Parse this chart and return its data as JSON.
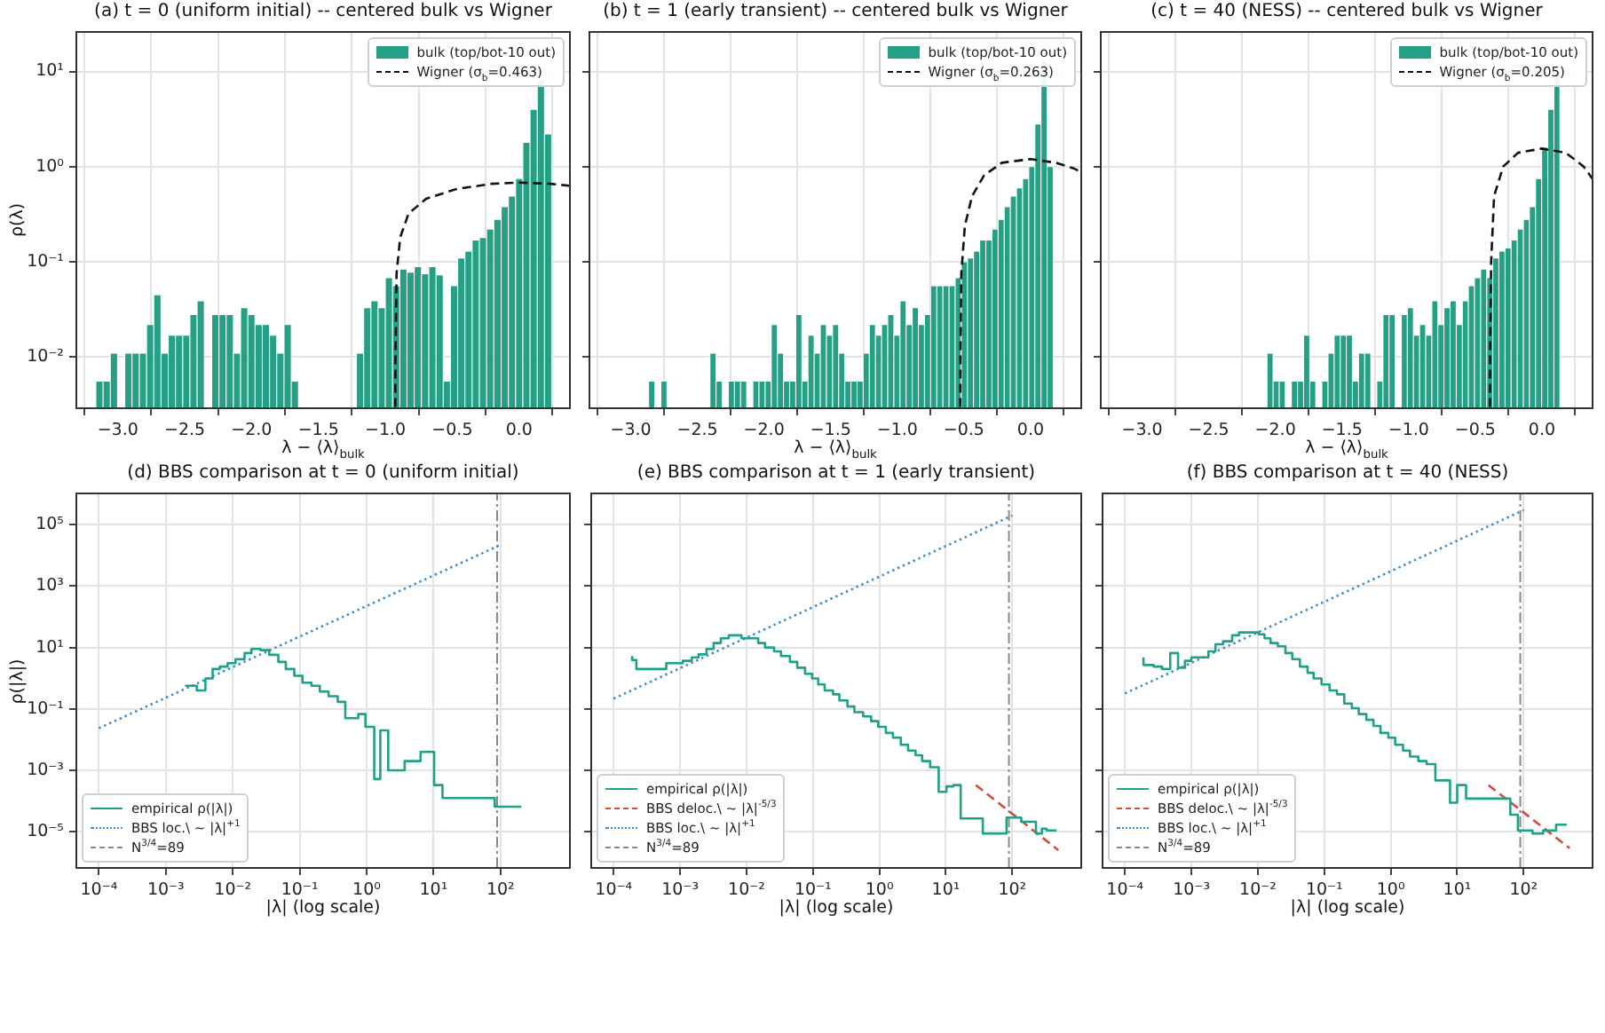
{
  "chart_data": [
    {
      "type": "histogram",
      "title": "(a) t = 0 (uniform initial)  -- centered bulk vs Wigner",
      "xlabel": "λ − ⟨λ⟩$_{bulk}$",
      "ylabel": "ρ(λ)",
      "log": "y",
      "grid": true,
      "legend": "top right",
      "xlim": [
        -3.31,
        0.38
      ],
      "ylim": [
        0.0029,
        26
      ],
      "xticks": [
        {
          "value": -3,
          "label": "−3.0"
        },
        {
          "value": -2.5,
          "label": "−2.5"
        },
        {
          "value": -2,
          "label": "−2.0"
        },
        {
          "value": -1.5,
          "label": "−1.5"
        },
        {
          "value": -1,
          "label": "−1.0"
        },
        {
          "value": -0.5,
          "label": "−0.5"
        },
        {
          "value": 0,
          "label": "0.0"
        }
      ],
      "yticks": [
        {
          "value": 0.01,
          "label": "10⁻²"
        },
        {
          "value": 0.1,
          "label": "10⁻¹"
        },
        {
          "value": 1,
          "label": "10⁰"
        },
        {
          "value": 10,
          "label": "10¹"
        }
      ],
      "series": [
        {
          "name": "bulk (top/bot-10 out)",
          "type": "histogram",
          "color": "#26a085",
          "bins": [
            -3.164,
            -3.11,
            -3.056,
            -3.002,
            -2.948,
            -2.894,
            -2.839,
            -2.785,
            -2.731,
            -2.677,
            -2.623,
            -2.569,
            -2.515,
            -2.461,
            -2.407,
            -2.353,
            -2.298,
            -2.244,
            -2.19,
            -2.136,
            -2.082,
            -2.028,
            -1.974,
            -1.92,
            -1.866,
            -1.812,
            -1.757,
            -1.703,
            -1.649,
            -1.595,
            -1.541,
            -1.487,
            -1.433,
            -1.379,
            -1.325,
            -1.271,
            -1.216,
            -1.162,
            -1.108,
            -1.054,
            -1.0,
            -0.946,
            -0.892,
            -0.838,
            -0.784,
            -0.73,
            -0.675,
            -0.621,
            -0.567,
            -0.513,
            -0.459,
            -0.405,
            -0.351,
            -0.297,
            -0.243,
            -0.189,
            -0.134,
            -0.08,
            -0.026,
            0.028,
            0.082,
            0.136,
            0.19,
            0.244
          ],
          "values": [
            0.0056,
            0.0056,
            0.011,
            null,
            0.011,
            0.011,
            0.011,
            0.022,
            0.045,
            0.011,
            0.017,
            0.017,
            0.017,
            0.028,
            0.039,
            null,
            0.028,
            0.028,
            0.028,
            0.011,
            0.033,
            0.028,
            0.022,
            0.022,
            0.017,
            0.011,
            0.022,
            0.0056,
            null,
            null,
            null,
            null,
            null,
            null,
            null,
            null,
            0.011,
            0.033,
            0.039,
            0.033,
            0.068,
            0.056,
            0.084,
            0.078,
            0.089,
            0.075,
            0.089,
            0.073,
            0.0056,
            0.056,
            0.11,
            0.13,
            0.17,
            0.18,
            0.22,
            0.28,
            0.38,
            0.49,
            0.75,
            1.8,
            4.0,
            8.1,
            2.2
          ]
        },
        {
          "name": "Wigner (σ$_{b}$=0.463)",
          "type": "line",
          "color": "#111111",
          "line_style": "dashed",
          "x": [
            -0.925,
            -0.924,
            -0.916,
            -0.889,
            -0.827,
            -0.695,
            -0.473,
            -0.208,
            0,
            0.235,
            0.376
          ],
          "values": [
            0.003,
            0.01,
            0.075,
            0.18,
            0.32,
            0.46,
            0.58,
            0.66,
            0.68,
            0.66,
            0.63
          ]
        }
      ]
    },
    {
      "type": "histogram",
      "title": "(b) t = 1 (early transient)  -- centered bulk vs Wigner",
      "xlabel": "λ − ⟨λ⟩$_{bulk}$",
      "log": "y",
      "grid": true,
      "legend": "top right",
      "tick_labels": "x",
      "xlim": [
        -3.31,
        0.38
      ],
      "ylim": [
        0.0029,
        26
      ],
      "xticks": [
        {
          "value": -3,
          "label": "−3.0"
        },
        {
          "value": -2.5,
          "label": "−2.5"
        },
        {
          "value": -2,
          "label": "−2.0"
        },
        {
          "value": -1.5,
          "label": "−1.5"
        },
        {
          "value": -1,
          "label": "−1.0"
        },
        {
          "value": -0.5,
          "label": "−0.5"
        },
        {
          "value": 0,
          "label": "0.0"
        }
      ],
      "yticks": [
        {
          "value": 0.01,
          "label": null
        },
        {
          "value": 0.1,
          "label": null
        },
        {
          "value": 1,
          "label": null
        },
        {
          "value": 10,
          "label": null
        }
      ],
      "series": [
        {
          "name": "bulk (top/bot-10 out)",
          "type": "histogram",
          "color": "#26a085",
          "bins": [
            -2.866,
            -2.82,
            -2.774,
            -2.728,
            -2.682,
            -2.636,
            -2.59,
            -2.544,
            -2.498,
            -2.452,
            -2.406,
            -2.36,
            -2.314,
            -2.268,
            -2.222,
            -2.176,
            -2.13,
            -2.084,
            -2.038,
            -1.992,
            -1.946,
            -1.9,
            -1.854,
            -1.808,
            -1.762,
            -1.716,
            -1.67,
            -1.624,
            -1.578,
            -1.532,
            -1.486,
            -1.44,
            -1.394,
            -1.348,
            -1.302,
            -1.256,
            -1.21,
            -1.164,
            -1.118,
            -1.072,
            -1.026,
            -0.98,
            -0.934,
            -0.888,
            -0.842,
            -0.796,
            -0.75,
            -0.704,
            -0.658,
            -0.612,
            -0.566,
            -0.52,
            -0.474,
            -0.428,
            -0.382,
            -0.336,
            -0.29,
            -0.244,
            -0.198,
            -0.152,
            -0.106,
            -0.06,
            -0.014,
            0.032,
            0.078,
            0.124,
            0.17
          ],
          "values": [
            0.0056,
            null,
            0.0056,
            null,
            null,
            null,
            null,
            null,
            null,
            null,
            0.011,
            0.0056,
            null,
            0.0056,
            0.0056,
            0.0056,
            null,
            0.0056,
            0.0056,
            0.0056,
            0.022,
            0.011,
            0.0056,
            0.0056,
            0.028,
            0.0056,
            0.017,
            0.011,
            0.022,
            0.017,
            0.022,
            0.011,
            0.0056,
            0.0056,
            0.0056,
            0.011,
            0.022,
            0.017,
            0.022,
            0.028,
            0.017,
            0.039,
            0.022,
            0.033,
            0.022,
            0.028,
            0.056,
            0.056,
            0.056,
            0.056,
            0.068,
            0.1,
            0.11,
            0.13,
            0.17,
            0.17,
            0.22,
            0.28,
            0.38,
            0.49,
            0.6,
            0.75,
            1.0,
            2.8,
            13,
            1.0
          ]
        },
        {
          "name": "Wigner (σ$_{b}$=0.263)",
          "type": "line",
          "color": "#111111",
          "line_style": "dashed",
          "x": [
            -0.528,
            -0.527,
            -0.52,
            -0.493,
            -0.439,
            -0.349,
            -0.215,
            0,
            0.188,
            0.322,
            0.376
          ],
          "values": [
            0.003,
            0.01,
            0.075,
            0.24,
            0.49,
            0.81,
            1.1,
            1.2,
            1.1,
            0.96,
            0.88
          ]
        }
      ]
    },
    {
      "type": "histogram",
      "title": "(c) t = 40 (NESS)  -- centered bulk vs Wigner",
      "xlabel": "λ − ⟨λ⟩$_{bulk}$",
      "log": "y",
      "grid": true,
      "legend": "top right",
      "tick_labels": "x",
      "xlim": [
        -3.31,
        0.38
      ],
      "ylim": [
        0.0029,
        26
      ],
      "xticks": [
        {
          "value": -3,
          "label": "−3.0"
        },
        {
          "value": -2.5,
          "label": "−2.5"
        },
        {
          "value": -2,
          "label": "−2.0"
        },
        {
          "value": -1.5,
          "label": "−1.5"
        },
        {
          "value": -1,
          "label": "−1.0"
        },
        {
          "value": -0.5,
          "label": "−0.5"
        },
        {
          "value": 0,
          "label": "0.0"
        }
      ],
      "yticks": [
        {
          "value": 0.01,
          "label": null
        },
        {
          "value": 0.1,
          "label": null
        },
        {
          "value": 1,
          "label": null
        },
        {
          "value": 10,
          "label": null
        }
      ],
      "series": [
        {
          "name": "bulk (top/bot-10 out)",
          "type": "histogram",
          "color": "#26a085",
          "bins": [
            -2.063,
            -2.017,
            -1.971,
            -1.926,
            -1.88,
            -1.834,
            -1.788,
            -1.742,
            -1.697,
            -1.651,
            -1.605,
            -1.559,
            -1.513,
            -1.468,
            -1.422,
            -1.376,
            -1.33,
            -1.284,
            -1.239,
            -1.193,
            -1.147,
            -1.101,
            -1.055,
            -1.01,
            -0.964,
            -0.918,
            -0.872,
            -0.826,
            -0.781,
            -0.735,
            -0.689,
            -0.643,
            -0.597,
            -0.552,
            -0.506,
            -0.46,
            -0.414,
            -0.369,
            -0.323,
            -0.277,
            -0.231,
            -0.185,
            -0.139,
            -0.094,
            -0.048,
            -0.002,
            0.044,
            0.09,
            0.135
          ],
          "values": [
            0.011,
            0.0056,
            0.0056,
            null,
            0.0056,
            0.0056,
            0.017,
            0.0056,
            null,
            0.0056,
            0.011,
            0.017,
            0.017,
            0.017,
            0.0056,
            0.011,
            0.011,
            null,
            0.0056,
            0.028,
            0.028,
            null,
            0.028,
            0.033,
            0.017,
            0.022,
            0.017,
            0.039,
            0.022,
            0.033,
            0.039,
            0.022,
            0.039,
            0.056,
            0.068,
            0.084,
            0.068,
            0.11,
            0.13,
            0.14,
            0.17,
            0.22,
            0.28,
            0.38,
            0.75,
            1.6,
            4.0,
            10
          ]
        },
        {
          "name": "Wigner (σ$_{b}$=0.205)",
          "type": "line",
          "color": "#111111",
          "line_style": "dashed",
          "x": [
            -0.39,
            -0.389,
            -0.381,
            -0.359,
            -0.291,
            -0.179,
            0,
            0.179,
            0.314,
            0.378
          ],
          "values": [
            0.003,
            0.01,
            0.1,
            0.49,
            1.0,
            1.4,
            1.55,
            1.4,
            1.0,
            0.75
          ]
        }
      ]
    },
    {
      "type": "step",
      "title": "(d) BBS comparison at t = 0 (uniform initial)",
      "xlabel": "|λ| (log scale)",
      "ylabel": "ρ(|λ|)",
      "log": "xy",
      "grid": true,
      "legend": "bottom left",
      "xlim": [
        4.6e-05,
        1090
      ],
      "ylim": [
        6.6e-07,
        1050000.0
      ],
      "xticks": [
        {
          "value": 0.0001,
          "label": "10⁻⁴"
        },
        {
          "value": 0.001,
          "label": "10⁻³"
        },
        {
          "value": 0.01,
          "label": "10⁻²"
        },
        {
          "value": 0.1,
          "label": "10⁻¹"
        },
        {
          "value": 1,
          "label": "10⁰"
        },
        {
          "value": 10,
          "label": "10¹"
        },
        {
          "value": 100,
          "label": "10²"
        }
      ],
      "yticks": [
        {
          "value": 1e-05,
          "label": "10⁻⁵"
        },
        {
          "value": 0.001,
          "label": "10⁻³"
        },
        {
          "value": 0.1,
          "label": "10⁻¹"
        },
        {
          "value": 10,
          "label": "10¹"
        },
        {
          "value": 1000,
          "label": "10³"
        },
        {
          "value": 100000,
          "label": "10⁵"
        }
      ],
      "series": [
        {
          "name": "empirical ρ(|λ|)",
          "type": "step",
          "color": "#1fa187",
          "x": [
            0.002,
            0.0029,
            0.0039,
            0.005,
            0.0064,
            0.0084,
            0.011,
            0.015,
            0.019,
            0.026,
            0.035,
            0.048,
            0.062,
            0.083,
            0.11,
            0.15,
            0.2,
            0.27,
            0.37,
            0.48,
            0.75,
            0.96,
            1.3,
            1.6,
            2.1,
            3.7,
            6.4,
            10.2,
            13.6,
            82,
            178,
            205
          ],
          "values": [
            0.53,
            0.57,
            0.4,
            0.98,
            2.0,
            2.4,
            3.1,
            4.2,
            6.6,
            9.0,
            8.2,
            5.8,
            3.4,
            2.0,
            1.2,
            0.72,
            0.57,
            0.37,
            0.26,
            0.17,
            0.05,
            0.068,
            0.026,
            0.00052,
            0.02,
            0.001,
            0.002,
            0.004,
            0.00033,
            0.000125,
            6.5e-05,
            6.5e-05
          ]
        },
        {
          "name": "BBS loc.\\ ∼ |λ|$^{+1}$",
          "type": "line",
          "color": "#3b8bc9",
          "line_style": "dotted",
          "x": [
            0.0001,
            100
          ],
          "values": [
            0.0235,
            22100
          ]
        },
        {
          "name": "N$^{3/4}$=89",
          "type": "line",
          "color": "#888888",
          "line_style": "dashdot",
          "x": [
            89,
            89
          ],
          "values": [
            6.6e-07,
            1050000.0
          ]
        }
      ]
    },
    {
      "type": "step",
      "title": "(e) BBS comparison at t = 1 (early transient)",
      "xlabel": "|λ| (log scale)",
      "log": "xy",
      "grid": true,
      "legend": "bottom left",
      "tick_labels": "x",
      "xlim": [
        4.6e-05,
        1090
      ],
      "ylim": [
        6.6e-07,
        1050000.0
      ],
      "xticks": [
        {
          "value": 0.0001,
          "label": "10⁻⁴"
        },
        {
          "value": 0.001,
          "label": "10⁻³"
        },
        {
          "value": 0.01,
          "label": "10⁻²"
        },
        {
          "value": 0.1,
          "label": "10⁻¹"
        },
        {
          "value": 1,
          "label": "10⁰"
        },
        {
          "value": 10,
          "label": "10¹"
        },
        {
          "value": 100,
          "label": "10²"
        }
      ],
      "yticks": [
        {
          "value": 1e-05,
          "label": null
        },
        {
          "value": 0.001,
          "label": null
        },
        {
          "value": 0.1,
          "label": null
        },
        {
          "value": 10,
          "label": null
        },
        {
          "value": 1000,
          "label": null
        },
        {
          "value": 100000,
          "label": null
        }
      ],
      "series": [
        {
          "name": "empirical ρ(|λ|)",
          "type": "step",
          "color": "#1fa187",
          "x": [
            0.00019,
            0.00022,
            0.00062,
            0.0011,
            0.0015,
            0.0019,
            0.0025,
            0.0032,
            0.0041,
            0.0054,
            0.0084,
            0.015,
            0.019,
            0.026,
            0.033,
            0.045,
            0.058,
            0.076,
            0.097,
            0.12,
            0.15,
            0.2,
            0.25,
            0.33,
            0.42,
            0.57,
            0.75,
            0.96,
            1.25,
            1.6,
            2.1,
            2.7,
            3.5,
            4.4,
            5.8,
            7.8,
            10.2,
            13,
            16.7,
            36,
            82,
            136,
            227,
            279,
            328,
            465
          ],
          "values": [
            5.3,
            3.9,
            2.0,
            3.1,
            3.7,
            4.8,
            6.0,
            9.0,
            14,
            20,
            25,
            20,
            14,
            10,
            7.5,
            5.3,
            3.4,
            2.2,
            1.4,
            0.98,
            0.63,
            0.4,
            0.3,
            0.19,
            0.12,
            0.078,
            0.057,
            0.04,
            0.026,
            0.0165,
            0.0116,
            0.0068,
            0.0044,
            0.0031,
            0.002,
            0.00126,
            0.0002,
            0.0003,
            0.00033,
            2.7e-05,
            8.7e-06,
            2.9e-05,
            2.1e-05,
            8.7e-06,
            1.25e-05,
            1.1e-05
          ]
        },
        {
          "name": "BBS deloc.\\ ∼ |λ|$^{-5/3}$",
          "type": "line",
          "color": "#d6483a",
          "line_style": "dashed",
          "x": [
            28.3,
            493
          ],
          "values": [
            0.00033,
            2.5e-06
          ]
        },
        {
          "name": "BBS loc.\\ ∼ |λ|$^{+1}$",
          "type": "line",
          "color": "#3b8bc9",
          "line_style": "dotted",
          "x": [
            0.0001,
            100
          ],
          "values": [
            0.216,
            200000
          ]
        },
        {
          "name": "N$^{3/4}$=89",
          "type": "line",
          "color": "#888888",
          "line_style": "dashdot",
          "x": [
            89,
            89
          ],
          "values": [
            6.6e-07,
            1050000.0
          ]
        }
      ]
    },
    {
      "type": "step",
      "title": "(f) BBS comparison at t = 40 (NESS)",
      "xlabel": "|λ| (log scale)",
      "log": "xy",
      "grid": true,
      "legend": "bottom left",
      "tick_labels": "x",
      "xlim": [
        4.6e-05,
        1090
      ],
      "ylim": [
        6.6e-07,
        1050000.0
      ],
      "xticks": [
        {
          "value": 0.0001,
          "label": "10⁻⁴"
        },
        {
          "value": 0.001,
          "label": "10⁻³"
        },
        {
          "value": 0.01,
          "label": "10⁻²"
        },
        {
          "value": 0.1,
          "label": "10⁻¹"
        },
        {
          "value": 1,
          "label": "10⁰"
        },
        {
          "value": 10,
          "label": "10¹"
        },
        {
          "value": 100,
          "label": "10²"
        }
      ],
      "yticks": [
        {
          "value": 1e-05,
          "label": null
        },
        {
          "value": 0.001,
          "label": null
        },
        {
          "value": 0.1,
          "label": null
        },
        {
          "value": 10,
          "label": null
        },
        {
          "value": 1000,
          "label": null
        },
        {
          "value": 100000,
          "label": null
        }
      ],
      "series": [
        {
          "name": "empirical ρ(|λ|)",
          "type": "step",
          "color": "#1fa187",
          "x": [
            0.00019,
            0.00027,
            0.00036,
            0.00048,
            0.00063,
            0.0008,
            0.001,
            0.0018,
            0.0023,
            0.003,
            0.0041,
            0.0052,
            0.0103,
            0.0126,
            0.0155,
            0.02,
            0.026,
            0.033,
            0.043,
            0.056,
            0.069,
            0.091,
            0.12,
            0.155,
            0.2,
            0.26,
            0.33,
            0.43,
            0.55,
            0.7,
            0.92,
            1.17,
            1.53,
            1.95,
            2.6,
            3.46,
            4.7,
            7.8,
            10,
            13.6,
            63,
            82,
            136,
            197,
            308,
            378,
            446
          ],
          "values": [
            4.8,
            2.7,
            2.4,
            2.0,
            6.6,
            2.2,
            3.7,
            4.8,
            7.5,
            12.8,
            16,
            25,
            31,
            27,
            20,
            14,
            11,
            6.6,
            4.2,
            2.4,
            1.5,
            0.98,
            0.63,
            0.4,
            0.3,
            0.15,
            0.106,
            0.068,
            0.044,
            0.028,
            0.0165,
            0.0116,
            0.0068,
            0.0044,
            0.0028,
            0.002,
            0.0016,
            0.00047,
            8.8e-05,
            0.00033,
            0.00012,
            3.6e-05,
            1.1e-05,
            8.7e-06,
            1.1e-05,
            1.7e-05,
            1.7e-05
          ]
        },
        {
          "name": "BBS deloc.\\ ∼ |λ|$^{-5/3}$",
          "type": "line",
          "color": "#d6483a",
          "line_style": "dashed",
          "x": [
            29.5,
            493
          ],
          "values": [
            0.00033,
            2.9e-06
          ]
        },
        {
          "name": "BBS loc.\\ ∼ |λ|$^{+1}$",
          "type": "line",
          "color": "#3b8bc9",
          "line_style": "dotted",
          "x": [
            0.0001,
            100
          ],
          "values": [
            0.32,
            300000
          ]
        },
        {
          "name": "N$^{3/4}$=89",
          "type": "line",
          "color": "#888888",
          "line_style": "dashdot",
          "x": [
            89,
            89
          ],
          "values": [
            6.6e-07,
            1050000.0
          ]
        }
      ]
    }
  ]
}
